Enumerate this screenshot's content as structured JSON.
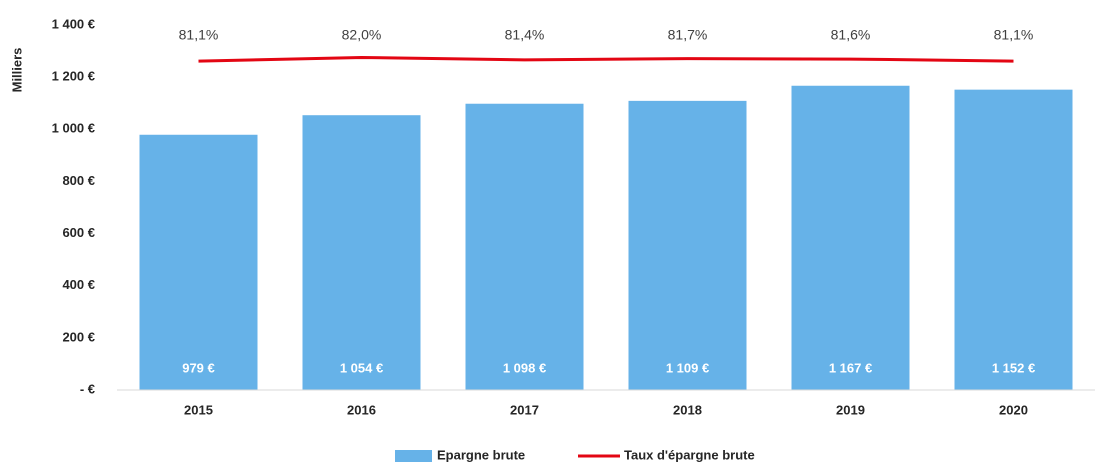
{
  "chart_data": {
    "type": "bar",
    "y_label": "Milliers",
    "categories": [
      "2015",
      "2016",
      "2017",
      "2018",
      "2019",
      "2020"
    ],
    "series": [
      {
        "name": "Epargne brute",
        "type": "bar",
        "color": "#66b2e8",
        "values": [
          979,
          1054,
          1098,
          1109,
          1167,
          1152
        ],
        "value_labels": [
          "979 €",
          "1 054 €",
          "1 098 €",
          "1 109 €",
          "1 167 €",
          "1 152 €"
        ]
      },
      {
        "name": "Taux d'épargne brute",
        "type": "line",
        "axis": "y2",
        "color": "#e30613",
        "values": [
          81.1,
          82.0,
          81.4,
          81.7,
          81.6,
          81.1
        ],
        "value_labels": [
          "81,1%",
          "82,0%",
          "81,4%",
          "81,7%",
          "81,6%",
          "81,1%"
        ]
      }
    ],
    "ylim": [
      0,
      1400
    ],
    "yticks": [
      {
        "value": 0,
        "label": "-  €"
      },
      {
        "value": 200,
        "label": "200 €"
      },
      {
        "value": 400,
        "label": "400 €"
      },
      {
        "value": 600,
        "label": "600 €"
      },
      {
        "value": 800,
        "label": "800 €"
      },
      {
        "value": 1000,
        "label": "1 000 €"
      },
      {
        "value": 1200,
        "label": "1 200 €"
      },
      {
        "value": 1400,
        "label": "1 400 €"
      }
    ],
    "y2lim": [
      0,
      90
    ],
    "legend": "bottom"
  }
}
